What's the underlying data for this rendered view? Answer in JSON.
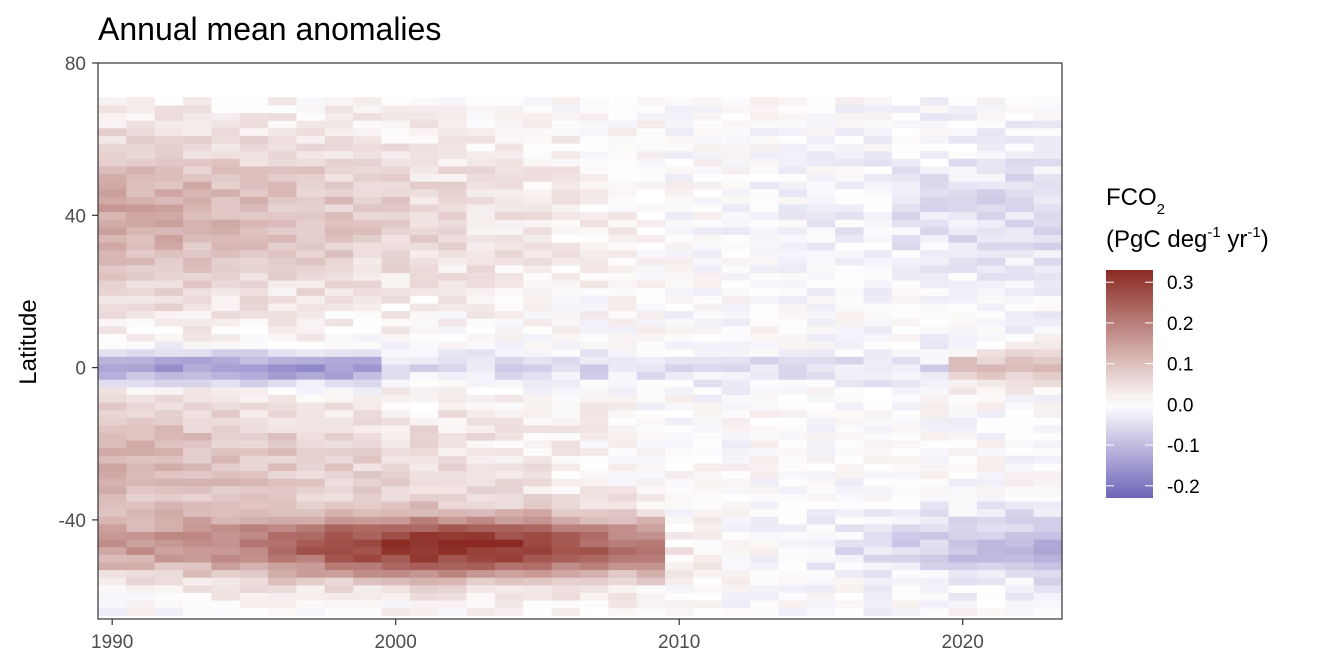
{
  "chart_data": {
    "type": "heatmap",
    "title": "Annual mean anomalies",
    "xlabel": "",
    "ylabel": "Latitude",
    "x_ticks": [
      "1990",
      "2000",
      "2010",
      "2020"
    ],
    "y_ticks": [
      "80",
      "40",
      "0",
      "-40"
    ],
    "x_range": [
      1989.5,
      2023.5
    ],
    "y_range": [
      -66,
      80
    ],
    "years": [
      1990,
      2023
    ],
    "lat_bands": [
      -64,
      70
    ],
    "colorbar": {
      "title_main": "FCO",
      "title_sub": "2",
      "unit_pre": "(PgC deg",
      "unit_sup1": "-1",
      "unit_mid": " yr",
      "unit_sup2": "-1",
      "unit_post": ")",
      "ticks": [
        "0.3",
        "0.2",
        "0.1",
        "0.0",
        "-0.1",
        "-0.2"
      ],
      "range": [
        -0.23,
        0.33
      ],
      "colors": {
        "low": "#6e64b8",
        "mid": "#ffffff",
        "high": "#8b2a22"
      }
    },
    "pattern_description_values": {
      "southern_ocean_peak_year": 2002,
      "southern_ocean_peak_value": 0.32,
      "equatorial_min_value": -0.2
    }
  }
}
